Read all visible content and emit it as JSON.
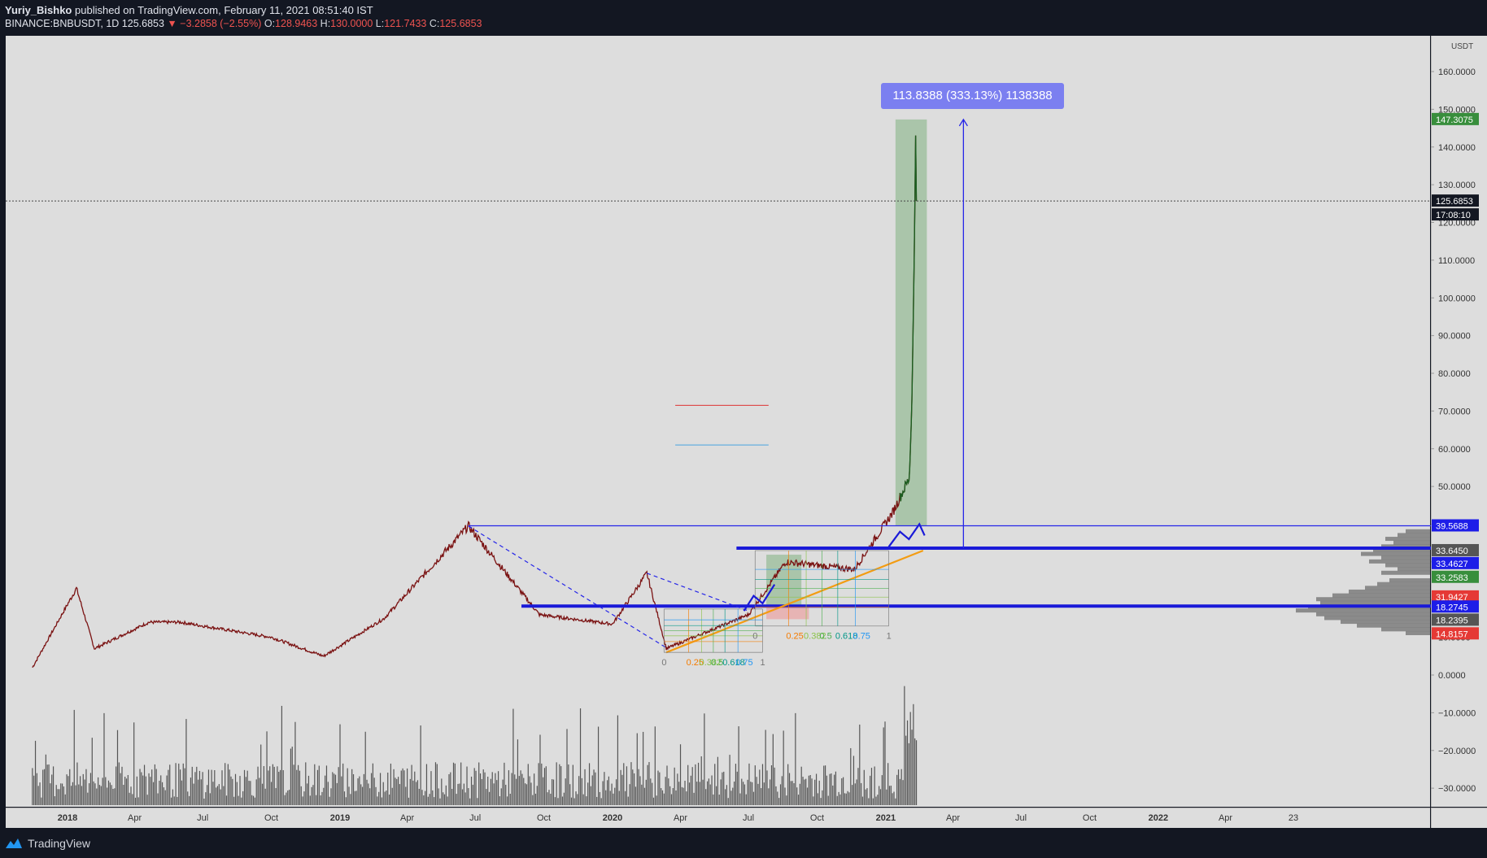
{
  "header": {
    "author": "Yuriy_Bishko",
    "published": "published on TradingView.com, February 11, 2021 08:51:40 IST",
    "symbol": "BINANCE:BNBUSDT, 1D",
    "last": "125.6853",
    "change": "−3.2858 (−2.55%)",
    "open_label": "O:",
    "open": "128.9463",
    "high_label": "H:",
    "high": "130.0000",
    "low_label": "L:",
    "low": "121.7433",
    "close_label": "C:",
    "close": "125.6853"
  },
  "price_axis": {
    "unit": "USDT",
    "ticks": [
      "160.0000",
      "150.0000",
      "140.0000",
      "130.0000",
      "120.0000",
      "110.0000",
      "100.0000",
      "90.0000",
      "80.0000",
      "70.0000",
      "60.0000",
      "50.0000",
      "40.0000",
      "30.0000",
      "20.0000",
      "10.0000",
      "0.0000",
      "−10.0000",
      "−20.0000",
      "−30.0000"
    ],
    "tags": [
      {
        "value": "147.3075",
        "color": "#388e3c"
      },
      {
        "value": "125.6853",
        "color": "#131722"
      },
      {
        "value": "17:08:10",
        "color": "#131722"
      },
      {
        "value": "39.5688",
        "color": "#1d1de8"
      },
      {
        "value": "33.6450",
        "color": "#555555"
      },
      {
        "value": "33.4627",
        "color": "#1d1de8"
      },
      {
        "value": "33.2583",
        "color": "#388e3c"
      },
      {
        "value": "31.9427",
        "color": "#e53935"
      },
      {
        "value": "18.2745",
        "color": "#1d1de8"
      },
      {
        "value": "18.2395",
        "color": "#555555"
      },
      {
        "value": "14.8157",
        "color": "#e53935"
      }
    ]
  },
  "time_axis": {
    "ticks": [
      {
        "label": "2018",
        "bold": true
      },
      {
        "label": "Apr"
      },
      {
        "label": "Jul"
      },
      {
        "label": "Oct"
      },
      {
        "label": "2019",
        "bold": true
      },
      {
        "label": "Apr"
      },
      {
        "label": "Jul"
      },
      {
        "label": "Oct"
      },
      {
        "label": "2020",
        "bold": true
      },
      {
        "label": "Apr"
      },
      {
        "label": "Jul"
      },
      {
        "label": "Oct"
      },
      {
        "label": "2021",
        "bold": true
      },
      {
        "label": "Apr"
      },
      {
        "label": "Jul"
      },
      {
        "label": "Oct"
      },
      {
        "label": "2022",
        "bold": true
      },
      {
        "label": "Apr"
      },
      {
        "label": "23"
      }
    ]
  },
  "measure": {
    "label": "113.8388 (333.13%) 1138388"
  },
  "fib_labels": {
    "levels": [
      "0",
      "0.25",
      "0.382",
      "0.5",
      "0.618",
      "0.75",
      "1"
    ]
  },
  "chart_data": {
    "type": "candlestick",
    "symbol": "BINANCE:BNBUSDT",
    "interval": "1D",
    "x_range": [
      "2017-11",
      "2023-01"
    ],
    "ylim": [
      -35,
      165
    ],
    "key_points": [
      {
        "date": "2017-11-15",
        "close": 2
      },
      {
        "date": "2018-01-13",
        "close": 23
      },
      {
        "date": "2018-02-06",
        "close": 7
      },
      {
        "date": "2018-04-20",
        "close": 14
      },
      {
        "date": "2018-06-01",
        "close": 14
      },
      {
        "date": "2018-10-01",
        "close": 10
      },
      {
        "date": "2018-12-10",
        "close": 5
      },
      {
        "date": "2019-03-01",
        "close": 15
      },
      {
        "date": "2019-06-22",
        "close": 39.5
      },
      {
        "date": "2019-09-25",
        "close": 16
      },
      {
        "date": "2020-01-01",
        "close": 13.5
      },
      {
        "date": "2020-02-16",
        "close": 27
      },
      {
        "date": "2020-03-13",
        "close": 7
      },
      {
        "date": "2020-07-01",
        "close": 16
      },
      {
        "date": "2020-08-20",
        "close": 30
      },
      {
        "date": "2020-11-20",
        "close": 28
      },
      {
        "date": "2021-01-10",
        "close": 43
      },
      {
        "date": "2021-02-01",
        "close": 52
      },
      {
        "date": "2021-02-10",
        "close": 147.3
      },
      {
        "date": "2021-02-11",
        "close": 125.6853
      }
    ],
    "horizontal_levels": [
      39.5688,
      33.645,
      18.2745
    ],
    "grid": false
  }
}
